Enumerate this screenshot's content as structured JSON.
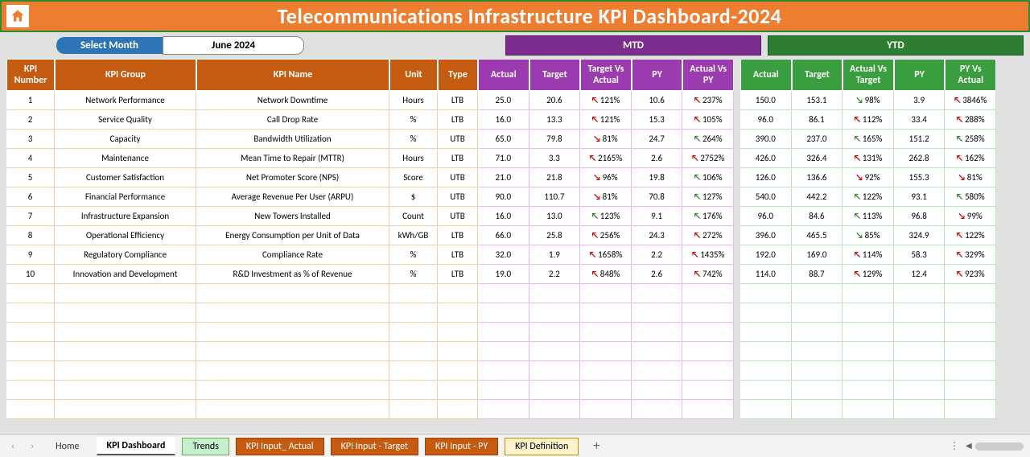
{
  "title": "Telecommunications Infrastructure KPI Dashboard-2024",
  "selectMonthLabel": "Select Month",
  "selectedMonth": "June 2024",
  "mtdLabel": "MTD",
  "ytdLabel": "YTD",
  "cols_left": [
    "KPI Number",
    "KPI Group",
    "KPI Name",
    "Unit",
    "Type"
  ],
  "cols_mtd": [
    "Actual",
    "Target",
    "Target Vs Actual",
    "PY",
    "Actual Vs PY"
  ],
  "cols_ytd": [
    "Actual",
    "Target",
    "Actual Vs Target",
    "PY",
    "PY Vs Actual"
  ],
  "rows": [
    {
      "n": "1",
      "grp": "Network Performance",
      "name": "Network Downtime",
      "unit": "Hours",
      "type": "LTB",
      "m": [
        "25.0",
        "20.6",
        "121%",
        "10.6",
        "237%"
      ],
      "ma": [
        "up-r",
        "up-r"
      ],
      "y": [
        "150.0",
        "153.1",
        "98%",
        "3.9",
        "3846%"
      ],
      "ya": [
        "dn-g",
        "up-r"
      ]
    },
    {
      "n": "2",
      "grp": "Service Quality",
      "name": "Call Drop Rate",
      "unit": "%",
      "type": "LTB",
      "m": [
        "16.0",
        "13.3",
        "121%",
        "15.3",
        "105%"
      ],
      "ma": [
        "up-r",
        "up-r"
      ],
      "y": [
        "96.0",
        "86.1",
        "112%",
        "33.4",
        "288%"
      ],
      "ya": [
        "up-r",
        "up-r"
      ]
    },
    {
      "n": "3",
      "grp": "Capacity",
      "name": "Bandwidth Utilization",
      "unit": "%",
      "type": "UTB",
      "m": [
        "65.0",
        "79.8",
        "81%",
        "24.7",
        "264%"
      ],
      "ma": [
        "dn-r",
        "up-g"
      ],
      "y": [
        "390.0",
        "237.0",
        "165%",
        "151.2",
        "258%"
      ],
      "ya": [
        "up-g",
        "up-g"
      ]
    },
    {
      "n": "4",
      "grp": "Maintenance",
      "name": "Mean Time to Repair (MTTR)",
      "unit": "Hours",
      "type": "LTB",
      "m": [
        "71.0",
        "3.3",
        "2165%",
        "2.6",
        "2752%"
      ],
      "ma": [
        "up-r",
        "up-r"
      ],
      "y": [
        "426.0",
        "326.4",
        "131%",
        "262.8",
        "162%"
      ],
      "ya": [
        "up-r",
        "up-r"
      ]
    },
    {
      "n": "5",
      "grp": "Customer Satisfaction",
      "name": "Net Promoter Score (NPS)",
      "unit": "Score",
      "type": "UTB",
      "m": [
        "21.0",
        "21.8",
        "96%",
        "19.8",
        "106%"
      ],
      "ma": [
        "dn-r",
        "up-g"
      ],
      "y": [
        "126.0",
        "136.6",
        "92%",
        "155.3",
        "81%"
      ],
      "ya": [
        "dn-r",
        "dn-r"
      ]
    },
    {
      "n": "6",
      "grp": "Financial Performance",
      "name": "Average Revenue Per User (ARPU)",
      "unit": "$",
      "type": "UTB",
      "m": [
        "90.0",
        "110.7",
        "81%",
        "70.8",
        "127%"
      ],
      "ma": [
        "dn-r",
        "up-g"
      ],
      "y": [
        "540.0",
        "442.2",
        "122%",
        "93.1",
        "580%"
      ],
      "ya": [
        "up-g",
        "up-g"
      ]
    },
    {
      "n": "7",
      "grp": "Infrastructure Expansion",
      "name": "New Towers Installed",
      "unit": "Count",
      "type": "UTB",
      "m": [
        "16.0",
        "13.0",
        "123%",
        "9.1",
        "176%"
      ],
      "ma": [
        "up-g",
        "up-g"
      ],
      "y": [
        "96.0",
        "84.6",
        "113%",
        "96.8",
        "99%"
      ],
      "ya": [
        "up-g",
        "dn-r"
      ]
    },
    {
      "n": "8",
      "grp": "Operational Efficiency",
      "name": "Energy Consumption per Unit of Data",
      "unit": "kWh/GB",
      "type": "LTB",
      "m": [
        "66.0",
        "25.8",
        "256%",
        "24.3",
        "272%"
      ],
      "ma": [
        "up-r",
        "up-r"
      ],
      "y": [
        "396.0",
        "465.5",
        "85%",
        "324.9",
        "122%"
      ],
      "ya": [
        "dn-g",
        "up-r"
      ]
    },
    {
      "n": "9",
      "grp": "Regulatory Compliance",
      "name": "Compliance Rate",
      "unit": "%",
      "type": "LTB",
      "m": [
        "32.0",
        "1.9",
        "1658%",
        "2.2",
        "1435%"
      ],
      "ma": [
        "up-r",
        "up-r"
      ],
      "y": [
        "192.0",
        "169.0",
        "114%",
        "58.3",
        "329%"
      ],
      "ya": [
        "up-r",
        "up-r"
      ]
    },
    {
      "n": "10",
      "grp": "Innovation and Development",
      "name": "R&D Investment as % of Revenue",
      "unit": "%",
      "type": "LTB",
      "m": [
        "19.0",
        "2.2",
        "848%",
        "2.6",
        "742%"
      ],
      "ma": [
        "up-r",
        "up-r"
      ],
      "y": [
        "114.0",
        "88.7",
        "129%",
        "12.4",
        "923%"
      ],
      "ya": [
        "up-r",
        "up-r"
      ]
    }
  ],
  "tabs": {
    "home": "Home",
    "dash": "KPI Dashboard",
    "trends": "Trends",
    "in_act": "KPI Input_ Actual",
    "in_tgt": "KPI Input - Target",
    "in_py": "KPI Input - PY",
    "def": "KPI Definition"
  },
  "colors": {
    "header": "#ed7d31",
    "left_th": "#c55a11",
    "mtd_banner": "#7b2d8e",
    "mtd_th": "#9c3bb0",
    "ytd_banner": "#2e7d32",
    "ytd_th": "#3a9d3f",
    "select": "#2e75b6"
  }
}
